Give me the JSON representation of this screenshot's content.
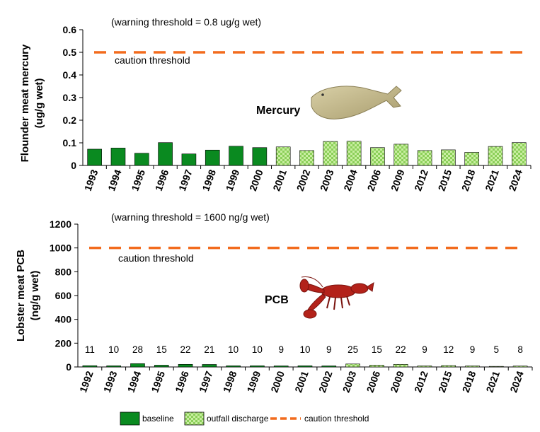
{
  "chart_data": [
    {
      "type": "bar",
      "name_label": "Mercury",
      "ylabel_line1": "Flounder meat mercury",
      "ylabel_line2": "(ug/g wet)",
      "note": "(warning threshold = 0.8 ug/g wet)",
      "caution_label": "caution threshold",
      "caution_value": 0.5,
      "ylim": [
        0,
        0.6
      ],
      "yticks": [
        "0",
        "0.1",
        "0.2",
        "0.3",
        "0.4",
        "0.5",
        "0.6"
      ],
      "categories": [
        "1993",
        "1994",
        "1995",
        "1996",
        "1997",
        "1998",
        "1999",
        "2000",
        "2001",
        "2002",
        "2003",
        "2004",
        "2006",
        "2009",
        "2012",
        "2015",
        "2018",
        "2021",
        "2024"
      ],
      "values": [
        0.072,
        0.077,
        0.054,
        0.101,
        0.051,
        0.068,
        0.085,
        0.079,
        0.082,
        0.066,
        0.106,
        0.107,
        0.079,
        0.094,
        0.066,
        0.069,
        0.058,
        0.084,
        0.101
      ],
      "phase": [
        "baseline",
        "baseline",
        "baseline",
        "baseline",
        "baseline",
        "baseline",
        "baseline",
        "baseline",
        "outfall",
        "outfall",
        "outfall",
        "outfall",
        "outfall",
        "outfall",
        "outfall",
        "outfall",
        "outfall",
        "outfall",
        "outfall"
      ],
      "data_labels": [],
      "image_icon": "flounder-icon"
    },
    {
      "type": "bar",
      "name_label": "PCB",
      "ylabel_line1": "Lobster meat PCB",
      "ylabel_line2": "(ng/g wet)",
      "note": "(warning threshold = 1600 ng/g wet)",
      "caution_label": "caution threshold",
      "caution_value": 1000,
      "ylim": [
        0,
        1200
      ],
      "yticks": [
        "0",
        "200",
        "400",
        "600",
        "800",
        "1000",
        "1200"
      ],
      "categories": [
        "1992",
        "1993",
        "1994",
        "1995",
        "1996",
        "1997",
        "1998",
        "1999",
        "2000",
        "2001",
        "2002",
        "2003",
        "2006",
        "2009",
        "2012",
        "2015",
        "2018",
        "2021",
        "2024"
      ],
      "values": [
        11,
        10,
        28,
        15,
        22,
        21,
        10,
        10,
        9,
        10,
        9,
        25,
        15,
        22,
        9,
        12,
        9,
        5,
        8
      ],
      "phase": [
        "baseline",
        "baseline",
        "baseline",
        "baseline",
        "baseline",
        "baseline",
        "baseline",
        "baseline",
        "baseline",
        "baseline",
        "baseline",
        "outfall",
        "outfall",
        "outfall",
        "outfall",
        "outfall",
        "outfall",
        "outfall",
        "outfall"
      ],
      "data_labels": [
        "11",
        "10",
        "28",
        "15",
        "22",
        "21",
        "10",
        "10",
        "9",
        "10",
        "9",
        "25",
        "15",
        "22",
        "9",
        "12",
        "9",
        "5",
        "8"
      ],
      "image_icon": "lobster-icon"
    }
  ],
  "legend": {
    "baseline": "baseline",
    "outfall": "outfall discharge",
    "caution": "caution threshold"
  },
  "colors": {
    "baseline_fill": "#0a8a20",
    "outfall_fill": "#c8eea0",
    "outfall_check": "#8ccf5a",
    "threshold": "#f26b1d"
  }
}
